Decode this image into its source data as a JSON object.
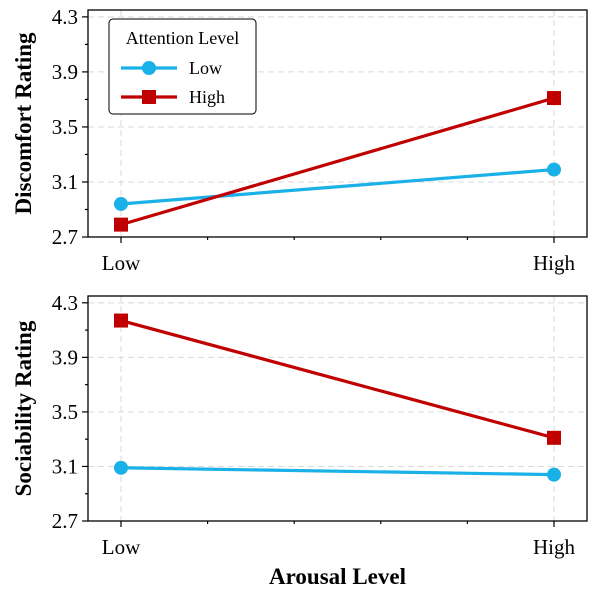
{
  "chart_data": [
    {
      "type": "line",
      "categories": [
        "Low",
        "High"
      ],
      "xlabel": "",
      "ylabel": "Discomfort Rating",
      "ylim": [
        2.7,
        4.35
      ],
      "yticks": [
        "2.7",
        "3.1",
        "3.5",
        "3.9",
        "4.3"
      ],
      "grid": true,
      "legend": {
        "title": "Attention Level",
        "position": "top-left"
      },
      "series": [
        {
          "name": "Low",
          "values": [
            2.94,
            3.19
          ],
          "color": "#1ab0e8",
          "marker": "circle"
        },
        {
          "name": "High",
          "values": [
            2.79,
            3.71
          ],
          "color": "#c00000",
          "marker": "square"
        }
      ]
    },
    {
      "type": "line",
      "categories": [
        "Low",
        "High"
      ],
      "xlabel": "Arousal Level",
      "ylabel": "Sociability Rating",
      "ylim": [
        2.7,
        4.35
      ],
      "yticks": [
        "2.7",
        "3.1",
        "3.5",
        "3.9",
        "4.3"
      ],
      "grid": true,
      "series": [
        {
          "name": "Low",
          "values": [
            3.09,
            3.04
          ],
          "color": "#1ab0e8",
          "marker": "circle"
        },
        {
          "name": "High",
          "values": [
            4.17,
            3.31
          ],
          "color": "#c00000",
          "marker": "square"
        }
      ]
    }
  ]
}
